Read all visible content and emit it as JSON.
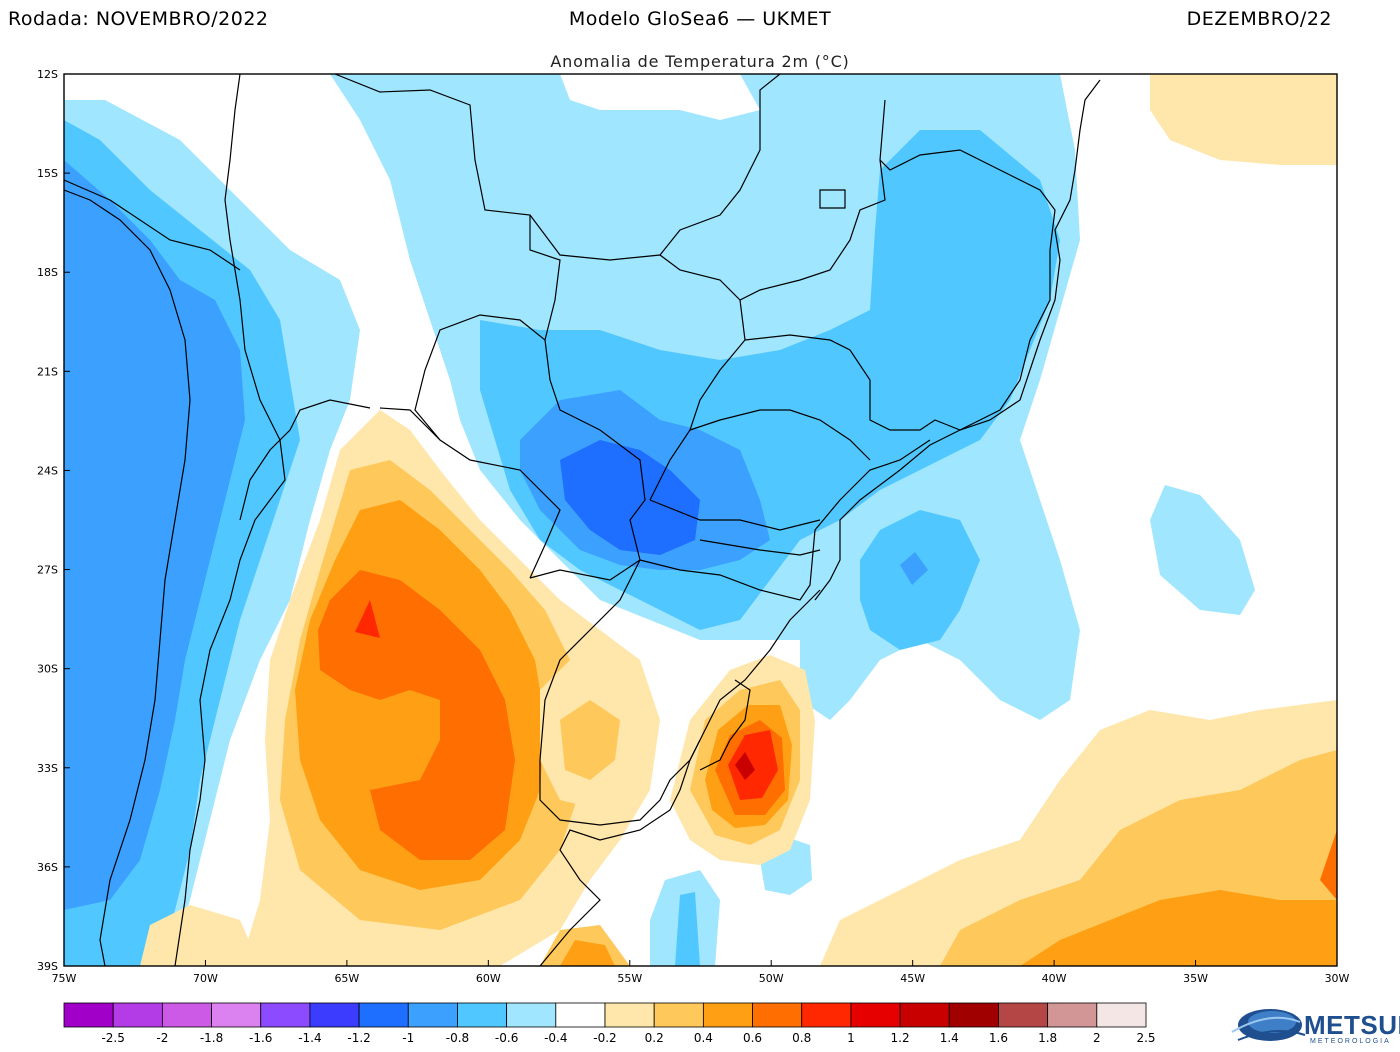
{
  "header": {
    "left": "Rodada: NOVEMBRO/2022",
    "center": "Modelo GloSea6 — UKMET",
    "right": "DEZEMBRO/22"
  },
  "map": {
    "subtitle": "Anomalia de Temperatura 2m (°C)",
    "variable": "2m temperature anomaly",
    "units": "°C",
    "lon_range": [
      -75,
      -30
    ],
    "lat_range": [
      -39,
      -12
    ],
    "lat_ticks": [
      "12S",
      "15S",
      "18S",
      "21S",
      "24S",
      "27S",
      "30S",
      "33S",
      "36S",
      "39S"
    ],
    "lon_ticks": [
      "75W",
      "70W",
      "65W",
      "60W",
      "55W",
      "50W",
      "45W",
      "40W",
      "35W",
      "30W"
    ]
  },
  "colorbar": {
    "labels": [
      "-2.5",
      "-2",
      "-1.8",
      "-1.6",
      "-1.4",
      "-1.2",
      "-1",
      "-0.8",
      "-0.6",
      "-0.4",
      "-0.2",
      "0.2",
      "0.4",
      "0.6",
      "0.8",
      "1",
      "1.2",
      "1.4",
      "1.6",
      "1.8",
      "2",
      "2.5"
    ],
    "colors": [
      "#a000c8",
      "#b43ce6",
      "#cc5ae6",
      "#dc82f0",
      "#8c4bff",
      "#3c3cff",
      "#1e6eff",
      "#3ca0ff",
      "#50c8ff",
      "#a0e6ff",
      "#ffffff",
      "#ffe6aa",
      "#ffc85a",
      "#ffa014",
      "#ff6e00",
      "#ff2800",
      "#e60000",
      "#c80000",
      "#a00000",
      "#b44646",
      "#d29696",
      "#f5e6e6"
    ]
  },
  "logo": {
    "name": "METSUL",
    "tagline": "METEOROLOGIA"
  }
}
